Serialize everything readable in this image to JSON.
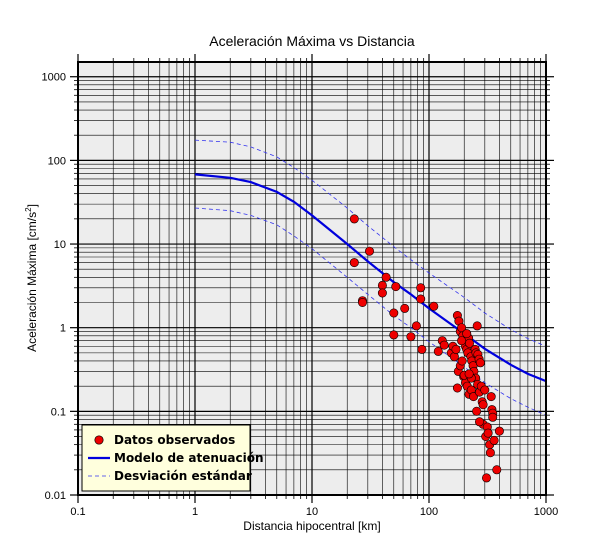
{
  "chart_data": {
    "type": "scatter",
    "title": "Aceleración Máxima vs Distancia",
    "xlabel": "Distancia hipocentral [km]",
    "ylabel": "Aceleración Máxima [cm/s",
    "ylabel_sup": "2",
    "ylabel_end": "]",
    "xscale": "log",
    "yscale": "log",
    "xlim": [
      0.1,
      1000
    ],
    "ylim": [
      0.01,
      1500
    ],
    "xticks": [
      {
        "value": 0.1,
        "label": "0.1"
      },
      {
        "value": 1,
        "label": "1"
      },
      {
        "value": 10,
        "label": "10"
      },
      {
        "value": 100,
        "label": "100"
      },
      {
        "value": 1000,
        "label": "1000"
      }
    ],
    "yticks": [
      {
        "value": 0.01,
        "label": "0.01"
      },
      {
        "value": 0.1,
        "label": "0.1"
      },
      {
        "value": 1,
        "label": "1"
      },
      {
        "value": 10,
        "label": "10"
      },
      {
        "value": 100,
        "label": "100"
      },
      {
        "value": 1000,
        "label": "1000"
      }
    ],
    "grid": true,
    "legend_position": "bottom-left",
    "colors": {
      "background": "#ededed",
      "grid": "#000000",
      "points": "#ee0000",
      "model": "#0000dd",
      "deviation": "#3333ee",
      "legend_bg": "#ffffdd"
    },
    "series": [
      {
        "name": "Datos observados",
        "kind": "scatter",
        "points": [
          [
            23,
            20
          ],
          [
            31,
            8.2
          ],
          [
            23,
            6
          ],
          [
            43,
            4
          ],
          [
            40,
            3.2
          ],
          [
            52,
            3.1
          ],
          [
            40,
            2.6
          ],
          [
            27,
            2.1
          ],
          [
            27,
            2.0
          ],
          [
            85,
            3.0
          ],
          [
            85,
            2.2
          ],
          [
            110,
            1.8
          ],
          [
            62,
            1.7
          ],
          [
            50,
            1.5
          ],
          [
            78,
            1.05
          ],
          [
            50,
            0.82
          ],
          [
            70,
            0.78
          ],
          [
            87,
            0.55
          ],
          [
            120,
            0.52
          ],
          [
            130,
            0.7
          ],
          [
            135,
            0.62
          ],
          [
            155,
            0.5
          ],
          [
            165,
            0.45
          ],
          [
            175,
            1.4
          ],
          [
            180,
            1.2
          ],
          [
            185,
            0.9
          ],
          [
            190,
            1.0
          ],
          [
            195,
            0.8
          ],
          [
            200,
            0.7
          ],
          [
            205,
            0.6
          ],
          [
            210,
            0.55
          ],
          [
            215,
            0.5
          ],
          [
            218,
            0.75
          ],
          [
            222,
            0.65
          ],
          [
            228,
            0.45
          ],
          [
            232,
            0.4
          ],
          [
            238,
            0.35
          ],
          [
            242,
            0.3
          ],
          [
            248,
            0.55
          ],
          [
            252,
            0.5
          ],
          [
            258,
            1.05
          ],
          [
            262,
            0.48
          ],
          [
            268,
            0.42
          ],
          [
            275,
            0.38
          ],
          [
            160,
            0.6
          ],
          [
            170,
            0.55
          ],
          [
            178,
            0.3
          ],
          [
            185,
            0.35
          ],
          [
            192,
            0.4
          ],
          [
            198,
            0.26
          ],
          [
            205,
            0.22
          ],
          [
            212,
            0.2
          ],
          [
            220,
            0.16
          ],
          [
            230,
            0.18
          ],
          [
            240,
            0.15
          ],
          [
            250,
            0.25
          ],
          [
            260,
            0.21
          ],
          [
            270,
            0.17
          ],
          [
            280,
            0.2
          ],
          [
            285,
            0.13
          ],
          [
            290,
            0.12
          ],
          [
            300,
            0.18
          ],
          [
            175,
            0.19
          ],
          [
            200,
            0.27
          ],
          [
            230,
            0.25
          ],
          [
            255,
            0.1
          ],
          [
            290,
            0.07
          ],
          [
            305,
            0.05
          ],
          [
            315,
            0.065
          ],
          [
            320,
            0.055
          ],
          [
            330,
            0.04
          ],
          [
            335,
            0.032
          ],
          [
            340,
            0.15
          ],
          [
            345,
            0.105
          ],
          [
            350,
            0.095
          ],
          [
            360,
            0.045
          ],
          [
            380,
            0.02
          ],
          [
            400,
            0.058
          ],
          [
            310,
            0.016
          ],
          [
            350,
            0.085
          ],
          [
            270,
            0.075
          ],
          [
            220,
            0.28
          ],
          [
            190,
            0.7
          ],
          [
            210,
            0.85
          ]
        ]
      },
      {
        "name": "Modelo de atenuación",
        "kind": "line",
        "points": [
          [
            1,
            68
          ],
          [
            2,
            62
          ],
          [
            3,
            55
          ],
          [
            5,
            42
          ],
          [
            7,
            32
          ],
          [
            10,
            22
          ],
          [
            20,
            10
          ],
          [
            30,
            6.2
          ],
          [
            50,
            3.5
          ],
          [
            70,
            2.5
          ],
          [
            100,
            1.7
          ],
          [
            200,
            0.85
          ],
          [
            300,
            0.56
          ],
          [
            500,
            0.36
          ],
          [
            700,
            0.28
          ],
          [
            1000,
            0.23
          ]
        ]
      },
      {
        "name": "Desviación estándar",
        "kind": "dashed",
        "bands": [
          [
            [
              1,
              175
            ],
            [
              2,
              165
            ],
            [
              3,
              145
            ],
            [
              5,
              110
            ],
            [
              7,
              82
            ],
            [
              10,
              58
            ],
            [
              20,
              27
            ],
            [
              30,
              16.5
            ],
            [
              50,
              9.3
            ],
            [
              70,
              6.5
            ],
            [
              100,
              4.5
            ],
            [
              200,
              2.3
            ],
            [
              300,
              1.5
            ],
            [
              500,
              0.95
            ],
            [
              700,
              0.74
            ],
            [
              1000,
              0.6
            ]
          ],
          [
            [
              1,
              27
            ],
            [
              2,
              25
            ],
            [
              3,
              22
            ],
            [
              5,
              17
            ],
            [
              7,
              12.5
            ],
            [
              10,
              8.8
            ],
            [
              20,
              4
            ],
            [
              30,
              2.5
            ],
            [
              50,
              1.4
            ],
            [
              70,
              1.0
            ],
            [
              100,
              0.68
            ],
            [
              200,
              0.34
            ],
            [
              300,
              0.22
            ],
            [
              500,
              0.142
            ],
            [
              700,
              0.112
            ],
            [
              1000,
              0.09
            ]
          ]
        ]
      }
    ]
  }
}
